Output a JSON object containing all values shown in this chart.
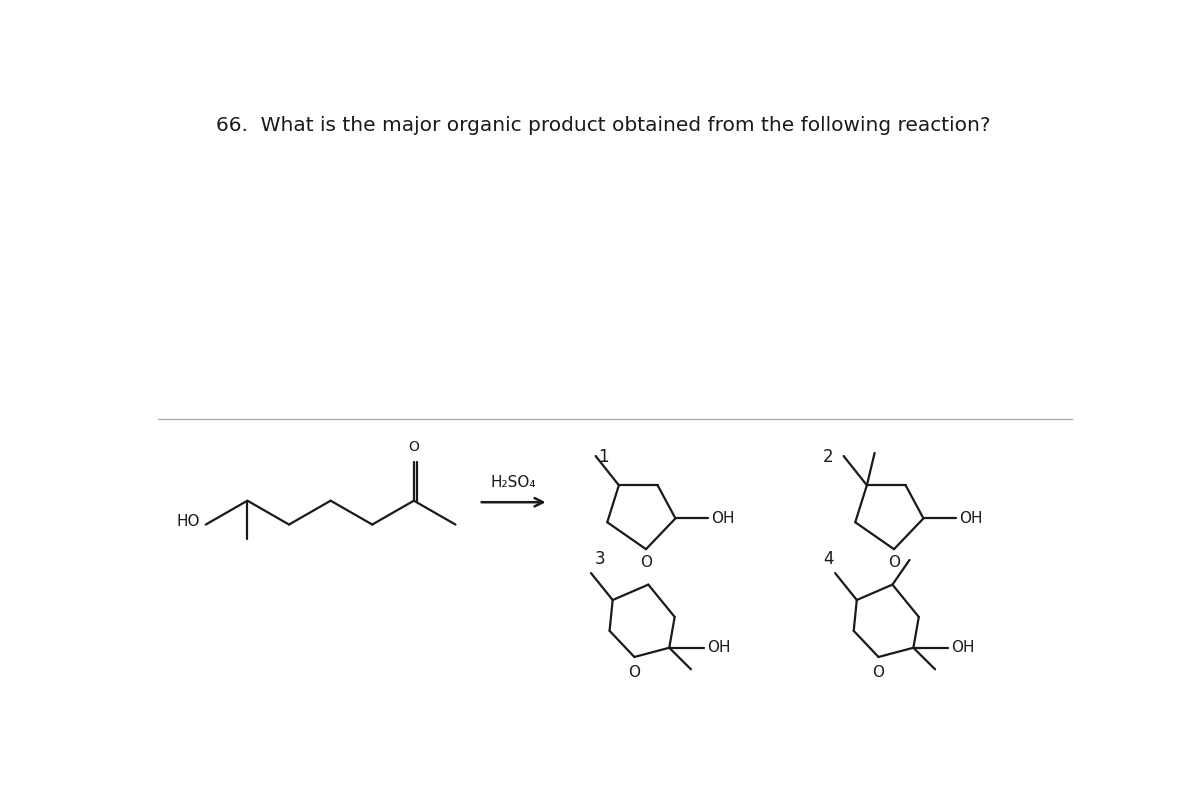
{
  "title": "66.  What is the major organic product obtained from the following reaction?",
  "title_fontsize": 14.5,
  "bg_color": "#ffffff",
  "line_color": "#1a1a1a",
  "line_width": 1.6,
  "text_color": "#1a1a1a",
  "h2so4_label": "H₂SO₄",
  "label_1": "1",
  "label_2": "2",
  "label_3": "3",
  "label_4": "4",
  "oh_label": "OH",
  "ho_label": "HO"
}
